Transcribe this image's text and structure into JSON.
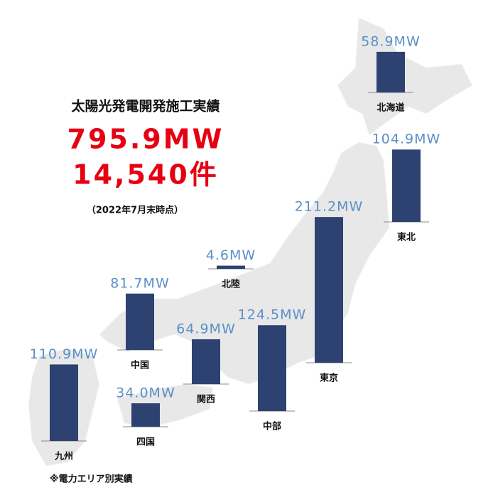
{
  "chart_data": {
    "type": "bar",
    "title": "太陽光発電開発施工実績",
    "total_capacity": "795.9MW",
    "total_count": "14,540件",
    "as_of": "（2022年7月末時点）",
    "note": "※電力エリア別実績",
    "categories": [
      "北海道",
      "東北",
      "東京",
      "中部",
      "北陸",
      "関西",
      "中国",
      "四国",
      "九州"
    ],
    "values": [
      58.9,
      104.9,
      211.2,
      124.5,
      4.6,
      64.9,
      81.7,
      34.0,
      110.9
    ],
    "value_labels": [
      "58.9MW",
      "104.9MW",
      "211.2MW",
      "124.5MW",
      "4.6MW",
      "64.9MW",
      "81.7MW",
      "34.0MW",
      "110.9MW"
    ],
    "color": "#2e4272"
  }
}
